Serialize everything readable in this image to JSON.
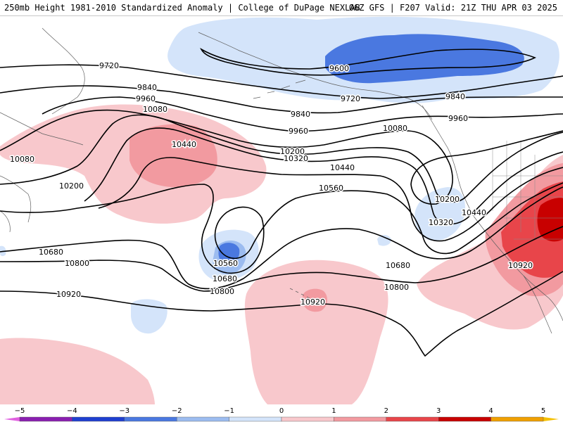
{
  "header": {
    "title_left": "250mb Height 1981-2010 Standardized Anomaly | College of DuPage NEXLAB",
    "title_right": "06Z GFS | F207 Valid: 21Z THU APR 03 2025"
  },
  "contours": {
    "l9600": "9600",
    "l9720a": "9720",
    "l9720b": "9720",
    "l9840a": "9840",
    "l9840b": "9840",
    "l9840c": "9840",
    "l9960a": "9960",
    "l9960b": "9960",
    "l9960c": "9960",
    "l10080a": "10080",
    "l10080b": "10080",
    "l10080c": "10080",
    "l10200a": "10200",
    "l10200b": "10200",
    "l10200c": "10200",
    "l10320a": "10320",
    "l10320b": "10320",
    "l10440a": "10440",
    "l10440b": "10440",
    "l10440c": "10440",
    "l10560a": "10560",
    "l10560b": "10560",
    "l10680a": "10680",
    "l10680b": "10680",
    "l10680c": "10680",
    "l10800a": "10800",
    "l10800b": "10800",
    "l10800c": "10800",
    "l10920a": "10920",
    "l10920b": "10920",
    "l10920c": "10920"
  },
  "colorbar": {
    "ticks": [
      "−5",
      "−4",
      "−3",
      "−2",
      "−1",
      "0",
      "1",
      "2",
      "3",
      "4",
      "5"
    ],
    "colors": [
      "#8a1fb0",
      "#1f3fd0",
      "#4a78e0",
      "#9cbcf0",
      "#d4e4fa",
      "#ffffff",
      "#f8c8cc",
      "#f29aa0",
      "#e8454a",
      "#c80000",
      "#f0a000"
    ],
    "low_arrow_color": "#e060e0",
    "high_arrow_color": "#f5c000"
  },
  "anomaly_colors": {
    "neg_weak": "#d4e4fa",
    "neg_mod": "#9cbcf0",
    "neg_strong": "#4a78e0",
    "pos_weak": "#f8c8cc",
    "pos_mod": "#f29aa0",
    "pos_strong": "#e8454a",
    "pos_extreme": "#c80000"
  }
}
